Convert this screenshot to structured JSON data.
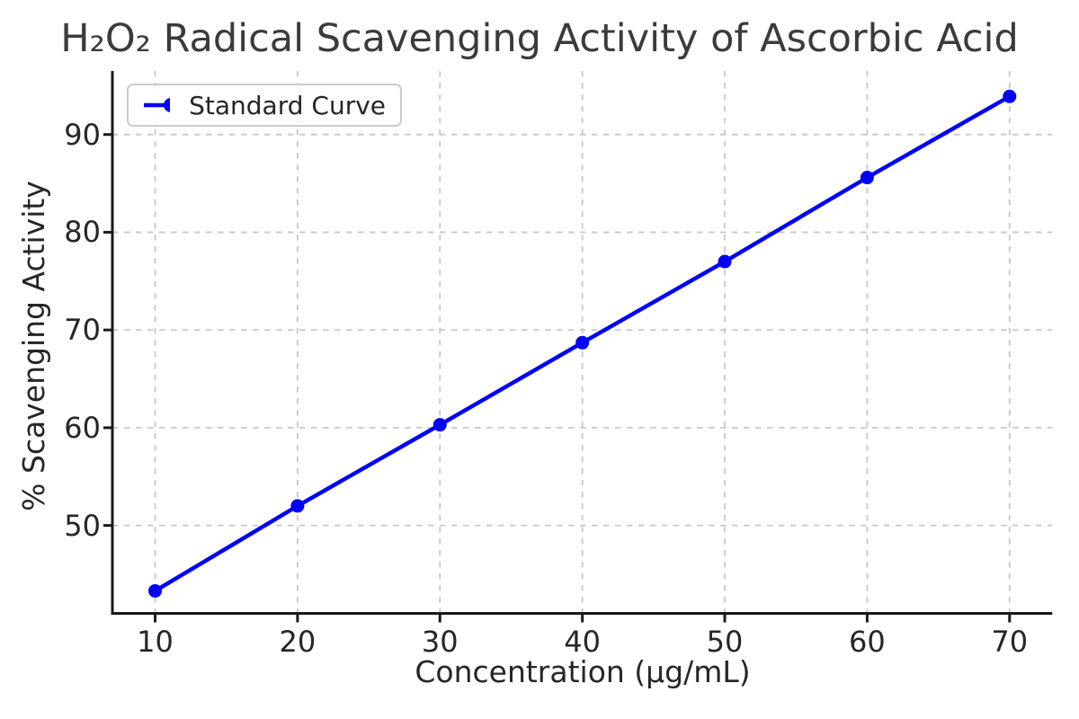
{
  "chart_data": {
    "type": "line",
    "title": "H₂O₂ Radical Scavenging Activity of Ascorbic Acid",
    "xlabel": "Concentration (μg/mL)",
    "ylabel": "% Scavenging Activity",
    "series": [
      {
        "name": "Standard Curve",
        "x": [
          10,
          20,
          30,
          40,
          50,
          60,
          70
        ],
        "y": [
          43.3,
          52.0,
          60.3,
          68.7,
          77.0,
          85.6,
          93.9
        ],
        "color": "#0000FF",
        "marker": "circle",
        "line_width": 4.5,
        "marker_radius": 7.5
      }
    ],
    "x_ticks": [
      10,
      20,
      30,
      40,
      50,
      60,
      70
    ],
    "y_ticks": [
      50,
      60,
      70,
      80,
      90
    ],
    "xlim": [
      7,
      73
    ],
    "ylim": [
      41,
      96.5
    ],
    "grid": true,
    "grid_style": "dashed",
    "legend_position": "upper left",
    "colors": {
      "line": "#0000FF",
      "grid": "#c8c8c8",
      "spine": "#1a1a1a",
      "text": "#262626",
      "legend_border": "#cbcbcb"
    }
  }
}
